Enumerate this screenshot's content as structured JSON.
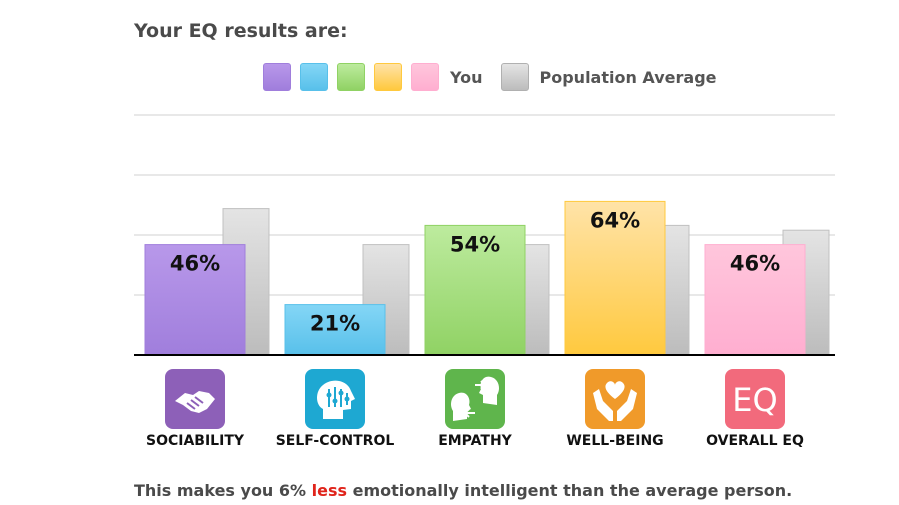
{
  "header": {
    "title": "Your EQ results are:"
  },
  "legend": {
    "you_label": "You",
    "population_label": "Population Average",
    "swatches": [
      "#b090e6",
      "#60c8ee",
      "#98d870",
      "#ffd060",
      "#ffb8d2"
    ],
    "population_swatch": "#c8c8c8"
  },
  "chart_data": {
    "type": "bar",
    "categories": [
      "SOCIABILITY",
      "SELF-CONTROL",
      "EMPATHY",
      "WELL-BEING",
      "OVERALL EQ"
    ],
    "series": [
      {
        "name": "You",
        "values": [
          46,
          21,
          54,
          64,
          46
        ],
        "labels": [
          "46%",
          "21%",
          "54%",
          "64%",
          "46%"
        ]
      },
      {
        "name": "Population Average",
        "values": [
          61,
          46,
          46,
          54,
          52
        ]
      }
    ],
    "ylim": [
      0,
      100
    ],
    "grid": true,
    "colors": {
      "you": [
        [
          "#b898ea",
          "#a07edc"
        ],
        [
          "#84d6f6",
          "#58c0ea"
        ],
        [
          "#bdeb9e",
          "#90d264"
        ],
        [
          "#ffe3a8",
          "#ffc93e"
        ],
        [
          "#ffc6dc",
          "#ffaed0"
        ]
      ],
      "population": [
        "#e4e4e4",
        "#bcbcbc"
      ],
      "icon_bg": [
        "#8d60b8",
        "#1ea8d2",
        "#5fb54c",
        "#f09a2a",
        "#f26a7c"
      ]
    }
  },
  "icons": [
    {
      "name": "handshake-icon",
      "text": ""
    },
    {
      "name": "head-equalizer-icon",
      "text": ""
    },
    {
      "name": "two-faces-icon",
      "text": ""
    },
    {
      "name": "hands-heart-icon",
      "text": ""
    },
    {
      "name": "eq-icon",
      "text": "EQ"
    }
  ],
  "footer": {
    "before": "This makes you 6% ",
    "highlight": "less",
    "after": " emotionally intelligent than the average person."
  }
}
